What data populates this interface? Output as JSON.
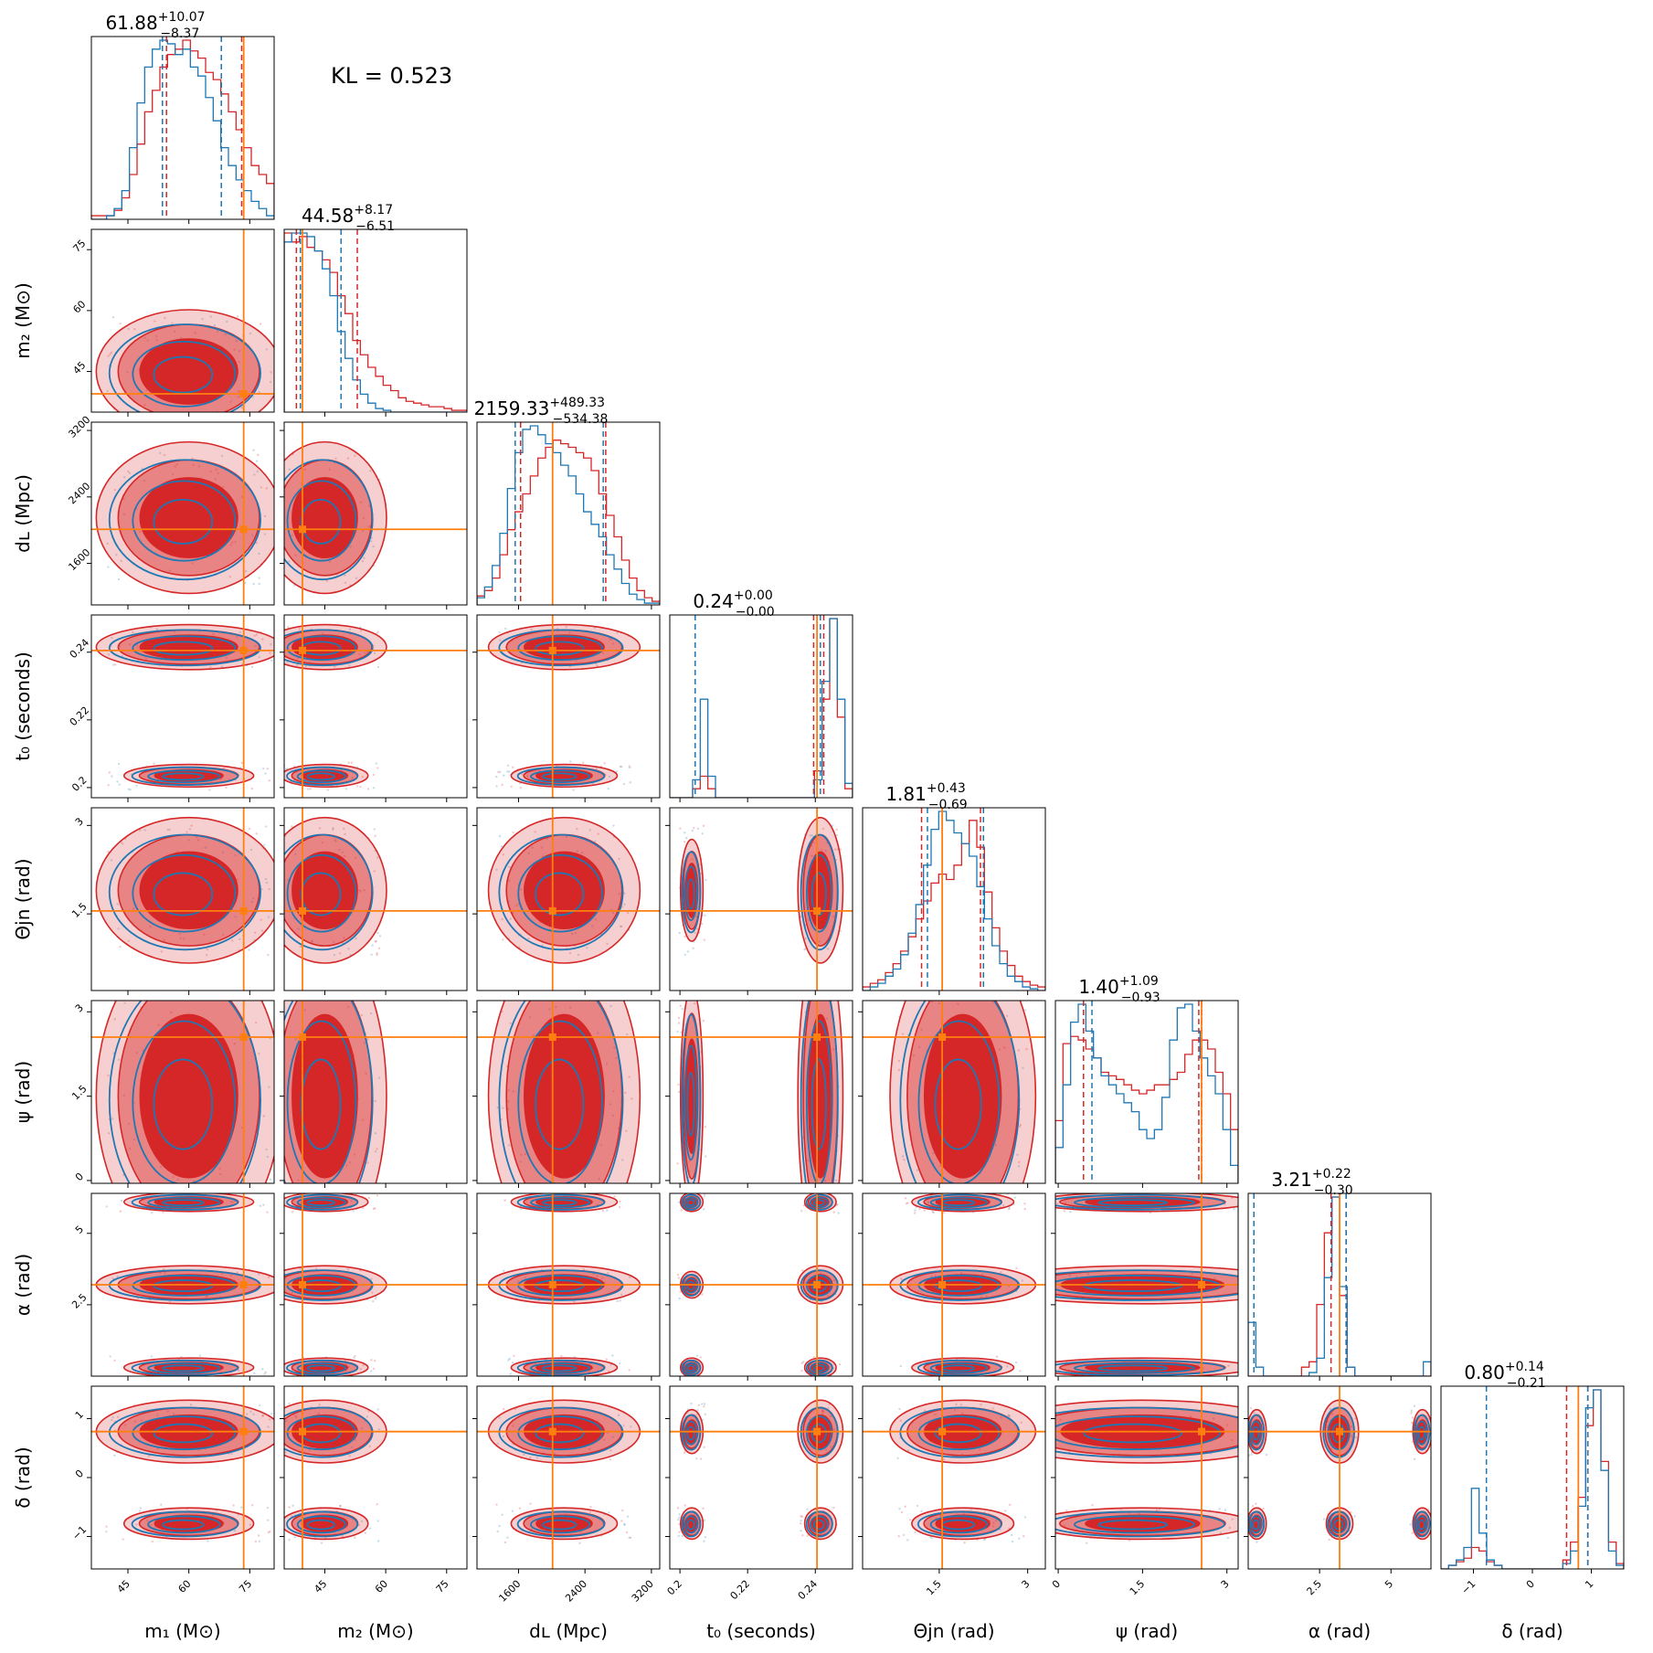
{
  "kl_text": "KL = 0.523",
  "colors": {
    "posterior_a": "#d62728",
    "posterior_b": "#1f77b4",
    "truth": "#ff7f0e"
  },
  "chart_data": {
    "type": "corner",
    "params": [
      {
        "key": "m1",
        "label": "m₁ (M⊙)",
        "range": [
          36,
          81
        ],
        "ticks": [
          45,
          60,
          75
        ],
        "truth": 73.5,
        "title": {
          "val": "61.88",
          "plus": "+10.07",
          "minus": "−8.37"
        },
        "q_red": [
          54.5,
          73
        ],
        "q_blue": [
          53.5,
          68
        ],
        "hist_red": [
          0.02,
          0.02,
          0.02,
          0.05,
          0.12,
          0.25,
          0.42,
          0.6,
          0.72,
          0.85,
          0.92,
          0.95,
          1.0,
          0.94,
          0.9,
          0.82,
          0.78,
          0.7,
          0.6,
          0.5,
          0.4,
          0.3,
          0.25,
          0.2
        ],
        "hist_blue": [
          0.0,
          0.0,
          0.02,
          0.06,
          0.16,
          0.4,
          0.65,
          0.85,
          0.95,
          1.0,
          0.98,
          0.92,
          0.95,
          0.85,
          0.8,
          0.68,
          0.55,
          0.4,
          0.3,
          0.22,
          0.16,
          0.1,
          0.06,
          0.02
        ]
      },
      {
        "key": "m2",
        "label": "m₂ (M⊙)",
        "range": [
          35,
          80
        ],
        "ticks": [
          45,
          60,
          75
        ],
        "truth": 39.5,
        "title": {
          "val": "44.58",
          "plus": "+8.17",
          "minus": "−6.51"
        },
        "q_red": [
          38,
          53
        ],
        "q_blue": [
          39,
          49
        ],
        "hist_red": [
          1.0,
          0.95,
          0.98,
          0.92,
          0.9,
          0.85,
          0.78,
          0.65,
          0.55,
          0.4,
          0.32,
          0.25,
          0.2,
          0.15,
          0.12,
          0.08,
          0.06,
          0.05,
          0.04,
          0.03,
          0.03,
          0.02,
          0.01,
          0.01
        ],
        "hist_blue": [
          0.95,
          1.0,
          1.0,
          0.98,
          0.9,
          0.8,
          0.65,
          0.45,
          0.3,
          0.18,
          0.1,
          0.05,
          0.02,
          0.01,
          0,
          0,
          0,
          0,
          0,
          0,
          0,
          0,
          0,
          0
        ]
      },
      {
        "key": "dL",
        "label": "dʟ (Mpc)",
        "range": [
          1100,
          3300
        ],
        "ticks": [
          1600,
          2400,
          3200
        ],
        "truth": 2010,
        "title": {
          "val": "2159.33",
          "plus": "+489.33",
          "minus": "−534.38"
        },
        "q_red": [
          1625,
          2650
        ],
        "q_blue": [
          1560,
          2620
        ],
        "hist_red": [
          0.05,
          0.08,
          0.15,
          0.28,
          0.42,
          0.52,
          0.62,
          0.72,
          0.82,
          0.88,
          0.92,
          0.9,
          0.88,
          0.85,
          0.82,
          0.75,
          0.62,
          0.5,
          0.38,
          0.25,
          0.15,
          0.08,
          0.04,
          0.02
        ],
        "hist_blue": [
          0.04,
          0.1,
          0.22,
          0.4,
          0.65,
          0.85,
          0.98,
          1.0,
          0.95,
          0.9,
          0.85,
          0.78,
          0.72,
          0.62,
          0.52,
          0.45,
          0.38,
          0.28,
          0.2,
          0.12,
          0.06,
          0.03,
          0.01,
          0.01
        ]
      },
      {
        "key": "t0",
        "label": "t₀ (seconds)",
        "range": [
          0.197,
          0.251
        ],
        "ticks": [
          0.2,
          0.22,
          0.24
        ],
        "truth": 0.2405,
        "title": {
          "val": "0.24",
          "plus": "+0.00",
          "minus": "−0.00"
        },
        "q_red": [
          0.2395,
          0.2425
        ],
        "q_blue": [
          0.2045,
          0.2415
        ],
        "hist_red": [
          0,
          0,
          0,
          0.05,
          0.12,
          0.05,
          0,
          0,
          0,
          0,
          0,
          0,
          0,
          0,
          0,
          0,
          0,
          0,
          0,
          0.15,
          0.55,
          1.0,
          0.45,
          0.05
        ],
        "hist_blue": [
          0,
          0,
          0,
          0.1,
          0.55,
          0.12,
          0,
          0,
          0,
          0,
          0,
          0,
          0,
          0,
          0,
          0,
          0,
          0,
          0,
          0.1,
          0.65,
          1.0,
          0.55,
          0.08
        ]
      },
      {
        "key": "theta",
        "label": "Θjn (rad)",
        "range": [
          0.2,
          3.3
        ],
        "ticks": [
          1.5,
          3.0
        ],
        "truth": 1.55,
        "title": {
          "val": "1.81",
          "plus": "+0.43",
          "minus": "−0.69"
        },
        "q_red": [
          1.2,
          2.2
        ],
        "q_blue": [
          1.3,
          2.25
        ],
        "hist_red": [
          0.02,
          0.04,
          0.06,
          0.1,
          0.15,
          0.22,
          0.3,
          0.4,
          0.5,
          0.6,
          0.65,
          0.62,
          0.7,
          0.82,
          0.95,
          0.8,
          0.55,
          0.35,
          0.22,
          0.14,
          0.08,
          0.05,
          0.03,
          0.02
        ],
        "hist_blue": [
          0.0,
          0.02,
          0.04,
          0.08,
          0.12,
          0.2,
          0.32,
          0.48,
          0.7,
          0.9,
          1.0,
          0.95,
          0.88,
          0.82,
          0.75,
          0.58,
          0.4,
          0.25,
          0.15,
          0.08,
          0.05,
          0.02,
          0.01,
          0.0
        ]
      },
      {
        "key": "psi",
        "label": "ψ (rad)",
        "range": [
          -0.05,
          3.2
        ],
        "ticks": [
          0.0,
          1.5,
          3.0
        ],
        "truth": 2.55,
        "title": {
          "val": "1.40",
          "plus": "+1.09",
          "minus": "−0.93"
        },
        "q_red": [
          0.45,
          2.5
        ],
        "q_blue": [
          0.6,
          2.55
        ],
        "hist_red": [
          0.35,
          0.78,
          0.82,
          0.8,
          0.75,
          0.7,
          0.62,
          0.6,
          0.58,
          0.55,
          0.52,
          0.5,
          0.52,
          0.55,
          0.55,
          0.58,
          0.62,
          0.72,
          0.8,
          0.8,
          0.75,
          0.62,
          0.5,
          0.3
        ],
        "hist_blue": [
          0.2,
          0.55,
          0.9,
          1.0,
          0.85,
          0.7,
          0.6,
          0.55,
          0.5,
          0.45,
          0.4,
          0.3,
          0.25,
          0.3,
          0.48,
          0.8,
          0.98,
          1.0,
          0.85,
          0.7,
          0.6,
          0.5,
          0.3,
          0.1
        ]
      },
      {
        "key": "alpha",
        "label": "α (rad)",
        "range": [
          0.0,
          6.4
        ],
        "ticks": [
          2.5,
          5.0
        ],
        "truth": 3.2,
        "title": {
          "val": "3.21",
          "plus": "+0.22",
          "minus": "−0.30"
        },
        "q_red": [
          2.9,
          3.43
        ],
        "q_blue": [
          0.2,
          3.43
        ],
        "hist_red": [
          0,
          0,
          0,
          0,
          0,
          0,
          0,
          0.05,
          0.08,
          0.4,
          0.8,
          1.0,
          0.45,
          0.05,
          0,
          0,
          0,
          0,
          0,
          0,
          0,
          0,
          0,
          0
        ],
        "hist_blue": [
          0.3,
          0.05,
          0,
          0,
          0,
          0,
          0,
          0,
          0.02,
          0.1,
          0.55,
          1.0,
          0.5,
          0.05,
          0,
          0,
          0,
          0,
          0,
          0,
          0,
          0,
          0,
          0.08
        ]
      },
      {
        "key": "delta",
        "label": "δ (rad)",
        "range": [
          -1.55,
          1.55
        ],
        "ticks": [
          -1,
          0,
          1
        ],
        "truth": 0.78,
        "title": {
          "val": "0.80",
          "plus": "+0.14",
          "minus": "−0.21"
        },
        "q_red": [
          0.58,
          0.94
        ],
        "q_blue": [
          -0.78,
          0.94
        ],
        "hist_red": [
          0,
          0.02,
          0.04,
          0.06,
          0.12,
          0.1,
          0.04,
          0.02,
          0,
          0,
          0,
          0,
          0,
          0,
          0,
          0,
          0.05,
          0.15,
          0.4,
          0.8,
          1.0,
          0.6,
          0.15,
          0.03
        ],
        "hist_blue": [
          0,
          0.02,
          0.05,
          0.12,
          0.45,
          0.2,
          0.05,
          0.02,
          0,
          0,
          0,
          0,
          0,
          0,
          0,
          0,
          0.03,
          0.1,
          0.35,
          0.9,
          1.0,
          0.55,
          0.1,
          0.02
        ]
      }
    ]
  }
}
